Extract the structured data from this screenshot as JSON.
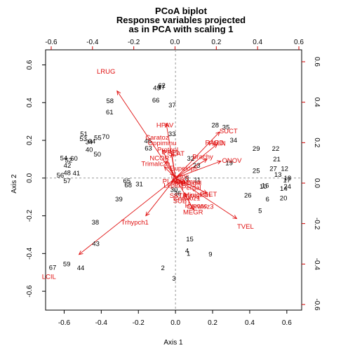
{
  "chart_data": {
    "type": "scatter",
    "title": [
      "PCoA biplot",
      "Response variables projected",
      "as in PCA with scaling 1"
    ],
    "xlabel": "Axis 1",
    "ylabel": "Axis 2",
    "xlim": [
      -0.7,
      0.68
    ],
    "ylim": [
      -0.7,
      0.68
    ],
    "bottom_ticks": [
      "-0.6",
      "-0.4",
      "-0.2",
      "0.0",
      "0.2",
      "0.4",
      "0.6"
    ],
    "left_ticks": [
      "-0.6",
      "-0.4",
      "-0.2",
      "0.0",
      "0.2",
      "0.4",
      "0.6"
    ],
    "top_ticks": [
      "-0.6",
      "-0.4",
      "-0.2",
      "0.0",
      "0.2",
      "0.4",
      "0.6"
    ],
    "right_ticks": [
      "-0.6",
      "-0.4",
      "-0.2",
      "0.0",
      "0.2",
      "0.4",
      "0.6"
    ],
    "sites": [
      {
        "label": "67",
        "x": -0.662,
        "y": -0.476
      },
      {
        "label": "59",
        "x": -0.586,
        "y": -0.459
      },
      {
        "label": "44",
        "x": -0.511,
        "y": -0.478
      },
      {
        "label": "43",
        "x": -0.429,
        "y": -0.351
      },
      {
        "label": "38",
        "x": -0.432,
        "y": -0.236
      },
      {
        "label": "39",
        "x": -0.305,
        "y": -0.114
      },
      {
        "label": "56",
        "x": -0.621,
        "y": 0.012
      },
      {
        "label": "48",
        "x": -0.584,
        "y": 0.025
      },
      {
        "label": "41",
        "x": -0.534,
        "y": 0.023
      },
      {
        "label": "57",
        "x": -0.584,
        "y": -0.018
      },
      {
        "label": "42",
        "x": -0.583,
        "y": 0.065
      },
      {
        "label": "52",
        "x": -0.576,
        "y": 0.093
      },
      {
        "label": "54",
        "x": -0.602,
        "y": 0.104
      },
      {
        "label": "60",
        "x": -0.547,
        "y": 0.102
      },
      {
        "label": "40",
        "x": -0.465,
        "y": 0.148
      },
      {
        "label": "50",
        "x": -0.421,
        "y": 0.123
      },
      {
        "label": "34",
        "x": -0.466,
        "y": 0.189
      },
      {
        "label": "64",
        "x": -0.451,
        "y": 0.192
      },
      {
        "label": "53",
        "x": -0.497,
        "y": 0.205
      },
      {
        "label": "55",
        "x": -0.419,
        "y": 0.211
      },
      {
        "label": "70",
        "x": -0.376,
        "y": 0.216
      },
      {
        "label": "51",
        "x": -0.494,
        "y": 0.231
      },
      {
        "label": "58",
        "x": -0.353,
        "y": 0.407
      },
      {
        "label": "61",
        "x": -0.355,
        "y": 0.348
      },
      {
        "label": "65",
        "x": -0.262,
        "y": -0.018
      },
      {
        "label": "68",
        "x": -0.255,
        "y": -0.04
      },
      {
        "label": "31",
        "x": -0.195,
        "y": -0.035
      },
      {
        "label": "49",
        "x": -0.101,
        "y": 0.475
      },
      {
        "label": "47",
        "x": -0.076,
        "y": 0.479
      },
      {
        "label": "62",
        "x": -0.074,
        "y": 0.489
      },
      {
        "label": "66",
        "x": -0.106,
        "y": 0.411
      },
      {
        "label": "37",
        "x": -0.018,
        "y": 0.384
      },
      {
        "label": "33",
        "x": -0.019,
        "y": 0.231
      },
      {
        "label": "46",
        "x": -0.149,
        "y": 0.195
      },
      {
        "label": "63",
        "x": -0.146,
        "y": 0.155
      },
      {
        "label": "28",
        "x": 0.214,
        "y": 0.279
      },
      {
        "label": "35",
        "x": 0.272,
        "y": 0.268
      },
      {
        "label": "34",
        "x": 0.313,
        "y": 0.198
      },
      {
        "label": "19",
        "x": 0.289,
        "y": 0.077
      },
      {
        "label": "23",
        "x": 0.114,
        "y": 0.065
      },
      {
        "label": "29",
        "x": 0.435,
        "y": 0.154
      },
      {
        "label": "22",
        "x": 0.54,
        "y": 0.154
      },
      {
        "label": "21",
        "x": 0.546,
        "y": 0.098
      },
      {
        "label": "25",
        "x": 0.435,
        "y": 0.037
      },
      {
        "label": "27",
        "x": 0.527,
        "y": 0.048
      },
      {
        "label": "12",
        "x": 0.588,
        "y": 0.048
      },
      {
        "label": "13",
        "x": 0.552,
        "y": 0.016
      },
      {
        "label": "18",
        "x": 0.604,
        "y": -0.002
      },
      {
        "label": "17",
        "x": 0.6,
        "y": -0.013
      },
      {
        "label": "24",
        "x": 0.603,
        "y": -0.048
      },
      {
        "label": "14",
        "x": 0.583,
        "y": -0.058
      },
      {
        "label": "10",
        "x": 0.473,
        "y": -0.048
      },
      {
        "label": "16",
        "x": 0.484,
        "y": -0.042
      },
      {
        "label": "26",
        "x": 0.39,
        "y": -0.094
      },
      {
        "label": "6",
        "x": 0.496,
        "y": -0.115
      },
      {
        "label": "20",
        "x": 0.582,
        "y": -0.109
      },
      {
        "label": "5",
        "x": 0.456,
        "y": -0.175
      },
      {
        "label": "15",
        "x": 0.077,
        "y": -0.326
      },
      {
        "label": "4",
        "x": 0.062,
        "y": -0.388
      },
      {
        "label": "1",
        "x": 0.07,
        "y": -0.402
      },
      {
        "label": "9",
        "x": 0.188,
        "y": -0.407
      },
      {
        "label": "2",
        "x": -0.068,
        "y": -0.479
      },
      {
        "label": "3",
        "x": -0.008,
        "y": -0.534
      },
      {
        "label": "30",
        "x": -0.008,
        "y": -0.064
      },
      {
        "label": "36",
        "x": 0.011,
        "y": -0.082
      },
      {
        "label": "32",
        "x": 0.082,
        "y": 0.101
      },
      {
        "label": "8",
        "x": 0.062,
        "y": -0.004
      },
      {
        "label": "11",
        "x": 0.118,
        "y": -0.012
      }
    ],
    "species": [
      {
        "label": "LRUG",
        "x": -0.374,
        "y": 0.563,
        "ax": -0.315,
        "ay": 0.462
      },
      {
        "label": "HPAV",
        "x": -0.057,
        "y": 0.278,
        "ax": -0.05,
        "ay": 0.29
      },
      {
        "label": "SUCT",
        "x": 0.286,
        "y": 0.247,
        "ax": 0.238,
        "ay": 0.245
      },
      {
        "label": "RARD",
        "x": 0.211,
        "y": 0.186,
        "ax": 0.225,
        "ay": 0.18
      },
      {
        "label": "HMIN",
        "x": 0.225,
        "y": 0.181
      },
      {
        "label": "ONOV",
        "x": 0.304,
        "y": 0.09,
        "ax": 0.245,
        "ay": 0.09
      },
      {
        "label": "Brachy",
        "x": 0.147,
        "y": 0.11,
        "ax": 0.17,
        "ay": 0.1
      },
      {
        "label": "Caratoz",
        "x": -0.099,
        "y": 0.214
      },
      {
        "label": "Oppiminu",
        "x": -0.072,
        "y": 0.183,
        "ax": -0.07,
        "ay": 0.15
      },
      {
        "label": "Protopl",
        "x": -0.042,
        "y": 0.148,
        "ax": -0.02,
        "ay": 0.13
      },
      {
        "label": "PPEL",
        "x": -0.023,
        "y": 0.134
      },
      {
        "label": "SLAT",
        "x": 0.005,
        "y": 0.128
      },
      {
        "label": "NCOR",
        "x": -0.086,
        "y": 0.104,
        "ax": -0.05,
        "ay": 0.09
      },
      {
        "label": "Trimalc2",
        "x": -0.116,
        "y": 0.073,
        "ax": -0.06,
        "ay": 0.06
      },
      {
        "label": "Eupelops",
        "x": 0.045,
        "y": 0.05
      },
      {
        "label": "Tectoc",
        "x": 0.021,
        "y": 0.006
      },
      {
        "label": "ALLLI",
        "x": 0.024,
        "y": -0.015
      },
      {
        "label": "PLAG2",
        "x": -0.012,
        "y": -0.02
      },
      {
        "label": "Galumna",
        "x": 0.061,
        "y": -0.022
      },
      {
        "label": "MPRO",
        "x": 0.03,
        "y": -0.029
      },
      {
        "label": "Minigal",
        "x": 0.083,
        "y": -0.029
      },
      {
        "label": "Lepidz",
        "x": -0.011,
        "y": -0.041
      },
      {
        "label": "Pergal",
        "x": 0.086,
        "y": -0.052
      },
      {
        "label": "FSET",
        "x": 0.178,
        "y": -0.088,
        "ax": 0.17,
        "ay": -0.08
      },
      {
        "label": "SSTR",
        "x": 0.016,
        "y": -0.095
      },
      {
        "label": "Miniglmn",
        "x": 0.117,
        "y": -0.092
      },
      {
        "label": "PWIL",
        "x": 0.087,
        "y": -0.1
      },
      {
        "label": "Ceratoz1",
        "x": 0.061,
        "y": -0.109
      },
      {
        "label": "SUBT",
        "x": 0.035,
        "y": -0.123
      },
      {
        "label": "Hyposc",
        "x": 0.111,
        "y": -0.147
      },
      {
        "label": "Ceratoz3",
        "x": 0.133,
        "y": -0.153
      },
      {
        "label": "MEGR",
        "x": 0.095,
        "y": -0.183,
        "ax": 0.1,
        "ay": -0.17
      },
      {
        "label": "TVEL",
        "x": 0.377,
        "y": -0.26,
        "ax": 0.33,
        "ay": -0.215
      },
      {
        "label": "Trhypch1",
        "x": -0.219,
        "y": -0.236,
        "ax": -0.16,
        "ay": -0.2
      },
      {
        "label": "LCIL",
        "x": -0.682,
        "y": -0.525,
        "ax": -0.52,
        "ay": -0.405
      }
    ]
  }
}
